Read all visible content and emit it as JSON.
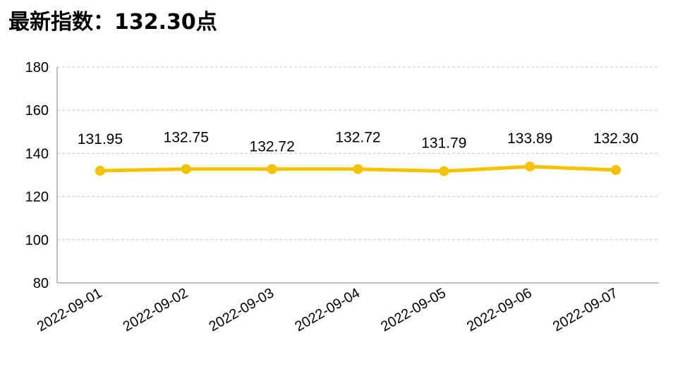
{
  "header": {
    "title_prefix": "最新指数：",
    "title_value": "132.30",
    "title_suffix": "点"
  },
  "colors": {
    "line": "#F5C200",
    "grid": "#C8C8C8",
    "axis": "#7F7F7F"
  },
  "chart_data": {
    "type": "line",
    "categories": [
      "2022-09-01",
      "2022-09-02",
      "2022-09-03",
      "2022-09-04",
      "2022-09-05",
      "2022-09-06",
      "2022-09-07"
    ],
    "values": [
      131.95,
      132.75,
      132.72,
      132.72,
      131.79,
      133.89,
      132.3
    ],
    "data_labels": [
      "131.95",
      "132.75",
      "132.72",
      "132.72",
      "131.79",
      "133.89",
      "132.30"
    ],
    "title": "最新指数：132.30点",
    "xlabel": "",
    "ylabel": "",
    "ylim": [
      80,
      180
    ],
    "yticks": [
      80,
      100,
      120,
      140,
      160,
      180
    ],
    "grid": "horizontal-dashed",
    "legend": "none"
  }
}
